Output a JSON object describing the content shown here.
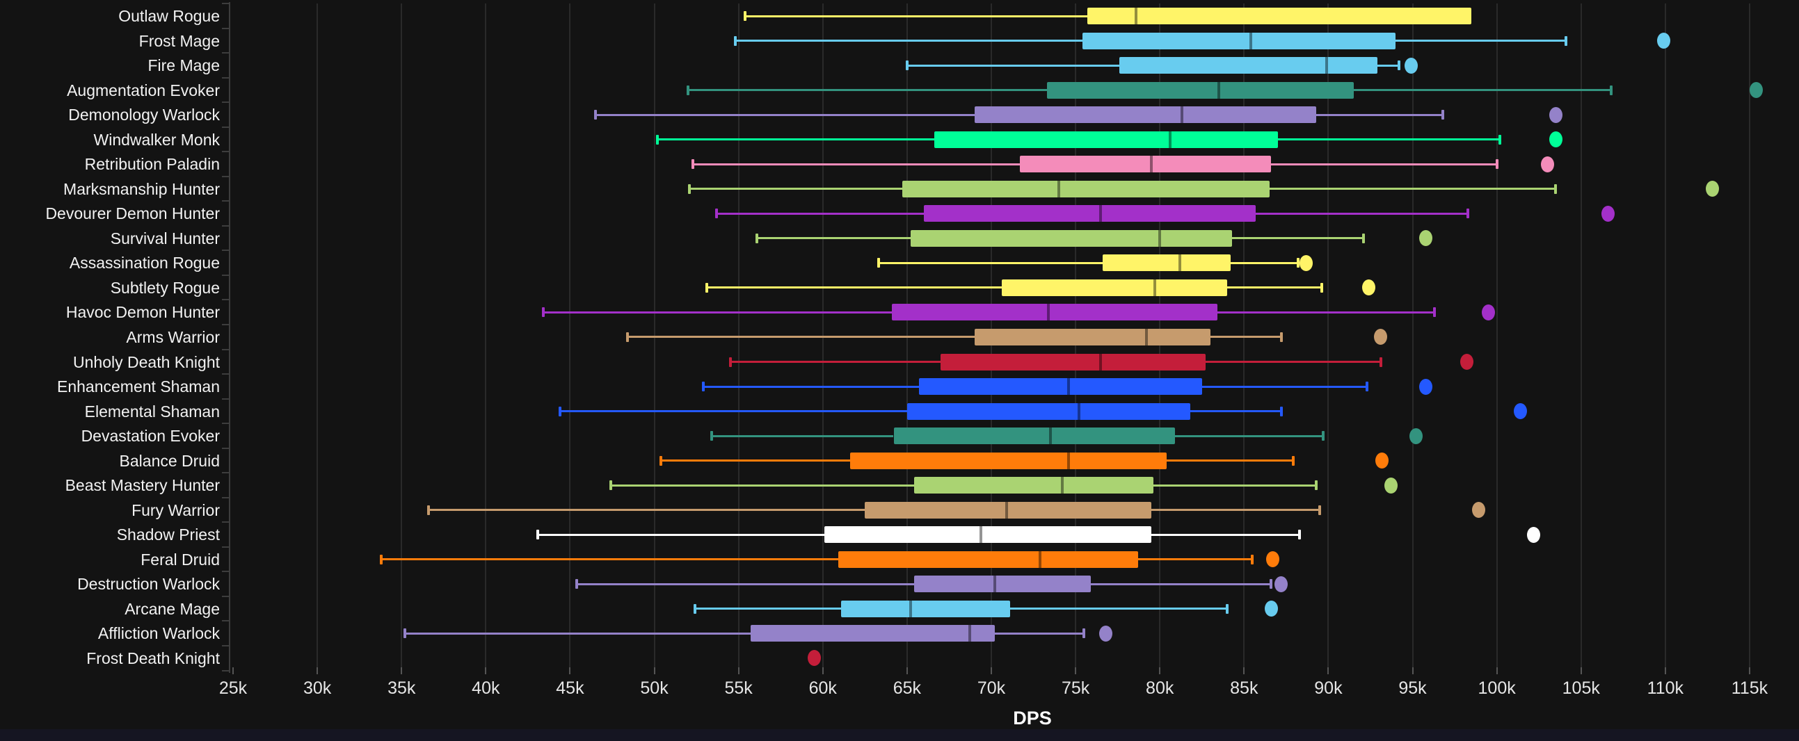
{
  "axis": {
    "tick_labels": [
      "25k",
      "30k",
      "35k",
      "40k",
      "45k",
      "50k",
      "55k",
      "60k",
      "65k",
      "70k",
      "75k",
      "80k",
      "85k",
      "90k",
      "95k",
      "100k",
      "105k",
      "110k",
      "115k"
    ],
    "min_k": 25,
    "max_k": 115,
    "step_k": 5
  },
  "xlabel": "DPS",
  "colors": {
    "background": "#131313",
    "gridline": "#2a2a2a",
    "axis": "#3d3d3d",
    "label_text": "#f2f2f2",
    "tick_text": "#e6e6e6",
    "footer_bar": "#151522"
  },
  "chart_data": {
    "type": "boxplot-horizontal",
    "title": "",
    "xlabel": "DPS",
    "ylabel": "",
    "values_unit": "thousands of DPS",
    "xlim_k": [
      25,
      115
    ],
    "grid": "vertical-only",
    "series": [
      {
        "label": "Outlaw Rogue",
        "class": "Rogue",
        "color": "#FFF468",
        "low": 55.4,
        "q1": 75.7,
        "median": 78.6,
        "q3": 98.5,
        "high": null,
        "outlier": null
      },
      {
        "label": "Frost Mage",
        "class": "Mage",
        "color": "#68CCEF",
        "low": 54.8,
        "q1": 75.4,
        "median": 85.4,
        "q3": 94.0,
        "high": 104.1,
        "outlier": 109.9
      },
      {
        "label": "Fire Mage",
        "class": "Mage",
        "color": "#68CCEF",
        "low": 65.0,
        "q1": 77.6,
        "median": 89.9,
        "q3": 92.9,
        "high": 94.2,
        "outlier": 94.9
      },
      {
        "label": "Augmentation Evoker",
        "class": "Evoker",
        "color": "#33937F",
        "low": 52.0,
        "q1": 73.3,
        "median": 83.5,
        "q3": 91.5,
        "high": 106.8,
        "outlier": 115.4
      },
      {
        "label": "Demonology Warlock",
        "class": "Warlock",
        "color": "#9482C9",
        "low": 46.5,
        "q1": 69.0,
        "median": 81.3,
        "q3": 89.3,
        "high": 96.8,
        "outlier": 103.5
      },
      {
        "label": "Windwalker Monk",
        "class": "Monk",
        "color": "#00FF98",
        "low": 50.2,
        "q1": 66.6,
        "median": 80.6,
        "q3": 87.0,
        "high": 100.2,
        "outlier": 103.5
      },
      {
        "label": "Retribution Paladin",
        "class": "Paladin",
        "color": "#F48CBA",
        "low": 52.3,
        "q1": 71.7,
        "median": 79.5,
        "q3": 86.6,
        "high": 100.0,
        "outlier": 103.0
      },
      {
        "label": "Marksmanship Hunter",
        "class": "Hunter",
        "color": "#AAD372",
        "low": 52.1,
        "q1": 64.7,
        "median": 74.0,
        "q3": 86.5,
        "high": 103.5,
        "outlier": 112.8
      },
      {
        "label": "Devourer Demon Hunter",
        "class": "Demon Hunter",
        "color": "#A330C9",
        "low": 53.7,
        "q1": 66.0,
        "median": 76.5,
        "q3": 85.7,
        "high": 98.3,
        "outlier": 106.6
      },
      {
        "label": "Survival Hunter",
        "class": "Hunter",
        "color": "#AAD372",
        "low": 56.1,
        "q1": 65.2,
        "median": 80.0,
        "q3": 84.3,
        "high": 92.1,
        "outlier": 95.8
      },
      {
        "label": "Assassination Rogue",
        "class": "Rogue",
        "color": "#FFF468",
        "low": 63.3,
        "q1": 76.6,
        "median": 81.2,
        "q3": 84.2,
        "high": 88.2,
        "outlier": 88.7
      },
      {
        "label": "Subtlety Rogue",
        "class": "Rogue",
        "color": "#FFF468",
        "low": 53.1,
        "q1": 70.6,
        "median": 79.7,
        "q3": 84.0,
        "high": 89.6,
        "outlier": 92.4
      },
      {
        "label": "Havoc Demon Hunter",
        "class": "Demon Hunter",
        "color": "#A330C9",
        "low": 43.4,
        "q1": 64.1,
        "median": 73.4,
        "q3": 83.4,
        "high": 96.3,
        "outlier": 99.5
      },
      {
        "label": "Arms Warrior",
        "class": "Warrior",
        "color": "#C69B6D",
        "low": 48.4,
        "q1": 69.0,
        "median": 79.2,
        "q3": 83.0,
        "high": 87.2,
        "outlier": 93.1
      },
      {
        "label": "Unholy Death Knight",
        "class": "Death Knight",
        "color": "#C41E3A",
        "low": 54.5,
        "q1": 67.0,
        "median": 76.5,
        "q3": 82.7,
        "high": 93.1,
        "outlier": 98.2
      },
      {
        "label": "Enhancement Shaman",
        "class": "Shaman",
        "color": "#2459FF",
        "low": 52.9,
        "q1": 65.7,
        "median": 74.6,
        "q3": 82.5,
        "high": 92.3,
        "outlier": 95.8
      },
      {
        "label": "Elemental Shaman",
        "class": "Shaman",
        "color": "#2459FF",
        "low": 44.4,
        "q1": 65.0,
        "median": 75.2,
        "q3": 81.8,
        "high": 87.2,
        "outlier": 101.4
      },
      {
        "label": "Devastation Evoker",
        "class": "Evoker",
        "color": "#33937F",
        "low": 53.4,
        "q1": 64.2,
        "median": 73.5,
        "q3": 80.9,
        "high": 89.7,
        "outlier": 95.2
      },
      {
        "label": "Balance Druid",
        "class": "Druid",
        "color": "#FF7C0A",
        "low": 50.4,
        "q1": 61.6,
        "median": 74.6,
        "q3": 80.4,
        "high": 87.9,
        "outlier": 93.2
      },
      {
        "label": "Beast Mastery Hunter",
        "class": "Hunter",
        "color": "#AAD372",
        "low": 47.4,
        "q1": 65.4,
        "median": 74.2,
        "q3": 79.6,
        "high": 89.3,
        "outlier": 93.7
      },
      {
        "label": "Fury Warrior",
        "class": "Warrior",
        "color": "#C69B6D",
        "low": 36.6,
        "q1": 62.5,
        "median": 70.9,
        "q3": 79.5,
        "high": 89.5,
        "outlier": 98.9
      },
      {
        "label": "Shadow Priest",
        "class": "Priest",
        "color": "#FFFFFF",
        "low": 43.1,
        "q1": 60.1,
        "median": 69.4,
        "q3": 79.5,
        "high": 88.3,
        "outlier": 102.2
      },
      {
        "label": "Feral Druid",
        "class": "Druid",
        "color": "#FF7C0A",
        "low": 33.8,
        "q1": 60.9,
        "median": 72.9,
        "q3": 78.7,
        "high": 85.5,
        "outlier": 86.7
      },
      {
        "label": "Destruction Warlock",
        "class": "Warlock",
        "color": "#9482C9",
        "low": 45.4,
        "q1": 65.4,
        "median": 70.2,
        "q3": 75.9,
        "high": 86.6,
        "outlier": 87.2
      },
      {
        "label": "Arcane Mage",
        "class": "Mage",
        "color": "#68CCEF",
        "low": 52.4,
        "q1": 61.1,
        "median": 65.2,
        "q3": 71.1,
        "high": 84.0,
        "outlier": 86.6
      },
      {
        "label": "Affliction Warlock",
        "class": "Warlock",
        "color": "#9482C9",
        "low": 35.2,
        "q1": 55.7,
        "median": 68.7,
        "q3": 70.2,
        "high": 75.5,
        "outlier": 76.8
      },
      {
        "label": "Frost Death Knight",
        "class": "Death Knight",
        "color": "#C41E3A",
        "low": null,
        "q1": null,
        "median": null,
        "q3": null,
        "high": null,
        "outlier": 59.5
      }
    ]
  }
}
